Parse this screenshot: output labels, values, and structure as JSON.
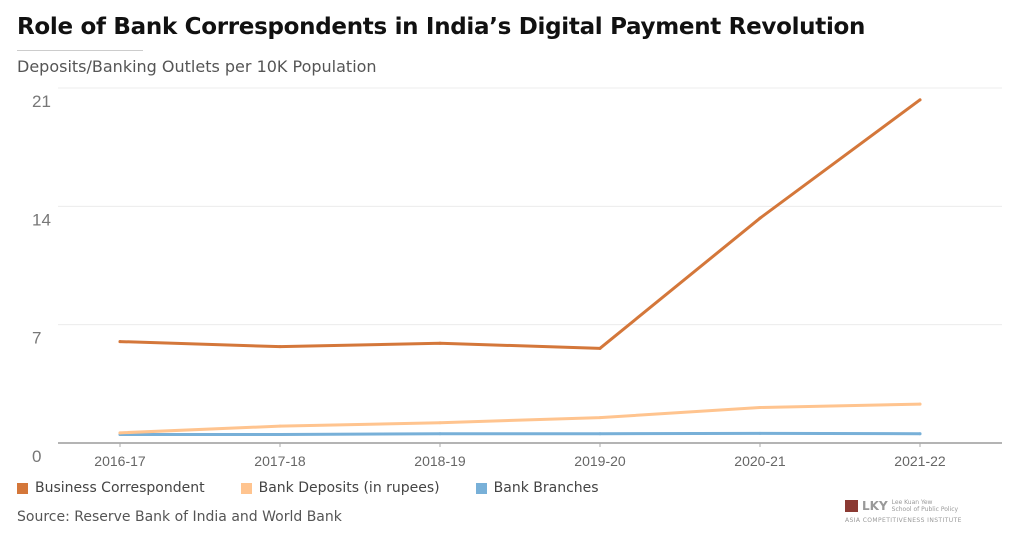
{
  "header": {
    "title": "Role of Bank Correspondents in India’s Digital Payment Revolution",
    "subtitle": "Deposits/Banking Outlets per 10K Population"
  },
  "source": "Source: Reserve Bank of India and World Bank",
  "logo": {
    "mark": "LKY",
    "line1": "Lee Kuan Yew",
    "line2": "School of Public Policy",
    "line3": "ASIA COMPETITIVENESS INSTITUTE"
  },
  "chart_data": {
    "type": "line",
    "title": "Role of Bank Correspondents in India’s Digital Payment Revolution",
    "subtitle": "Deposits/Banking Outlets per 10K Population",
    "xlabel": "",
    "ylabel": "",
    "categories": [
      "2016-17",
      "2017-18",
      "2018-19",
      "2019-20",
      "2020-21",
      "2021-22"
    ],
    "ylim": [
      0,
      21
    ],
    "yticks": [
      0,
      7,
      14,
      21
    ],
    "grid": true,
    "legend_position": "bottom-left",
    "series": [
      {
        "name": "Business Correspondent",
        "color": "#d4773a",
        "values": [
          6.0,
          5.7,
          5.9,
          5.6,
          13.3,
          20.3
        ]
      },
      {
        "name": "Bank Deposits (in rupees)",
        "color": "#ffc48f",
        "values": [
          0.6,
          1.0,
          1.2,
          1.5,
          2.1,
          2.3
        ]
      },
      {
        "name": "Bank Branches",
        "color": "#78b0d8",
        "values": [
          0.5,
          0.5,
          0.55,
          0.55,
          0.57,
          0.55
        ]
      }
    ]
  }
}
